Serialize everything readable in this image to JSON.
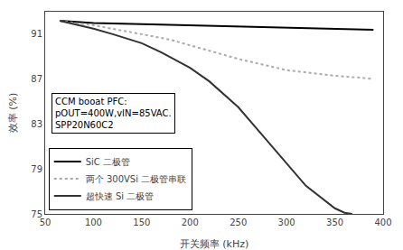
{
  "chart_data": {
    "type": "line",
    "xlabel": "开关频率 (kHz)",
    "ylabel": "效率 (%)",
    "xlim": [
      50,
      400
    ],
    "ylim": [
      75,
      93
    ],
    "xticks": [
      50,
      100,
      150,
      200,
      250,
      300,
      350,
      400
    ],
    "yticks": [
      75,
      79,
      83,
      87,
      91
    ],
    "grid": false,
    "legend": "lower left",
    "annotations": [
      "CCM booat PFC:\npOUT=400W,vIN=85VAC.\nSPP20N60C2"
    ],
    "series": [
      {
        "name": "SiC 二极管",
        "color": "#000000",
        "line_style": "solid",
        "x": [
          65,
          80,
          100,
          150,
          200,
          250,
          300,
          350,
          390
        ],
        "values": [
          92.2,
          92.1,
          92.0,
          91.9,
          91.8,
          91.7,
          91.6,
          91.5,
          91.4
        ]
      },
      {
        "name": "两个 300VSi 二极管串联",
        "color": "#aaaaaa",
        "line_style": "dotted",
        "x": [
          65,
          80,
          100,
          120,
          150,
          180,
          200,
          230,
          250,
          280,
          300,
          330,
          350,
          380,
          390
        ],
        "values": [
          92.2,
          92.0,
          91.8,
          91.5,
          91.0,
          90.5,
          90.0,
          89.3,
          88.8,
          88.2,
          87.8,
          87.5,
          87.3,
          87.1,
          87.0
        ]
      },
      {
        "name": "超快速 Si 二极管",
        "color": "#333333",
        "line_style": "solid",
        "x": [
          65,
          80,
          100,
          120,
          150,
          170,
          200,
          220,
          250,
          270,
          300,
          320,
          350,
          360,
          368
        ],
        "values": [
          92.2,
          91.9,
          91.5,
          91.0,
          90.2,
          89.4,
          88.0,
          86.8,
          84.5,
          82.5,
          79.5,
          77.5,
          75.5,
          75.1,
          75.0
        ]
      }
    ]
  }
}
